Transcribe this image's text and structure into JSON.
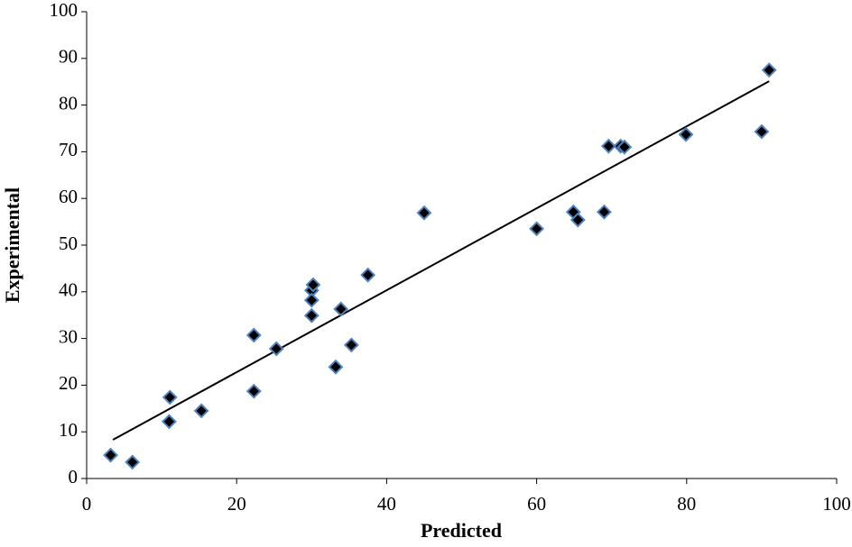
{
  "chart_data": {
    "type": "scatter",
    "x_label": "Predicted",
    "y_label": "Experimental",
    "x": [
      3.2,
      6.1,
      11.1,
      11.0,
      15.3,
      22.3,
      22.3,
      25.3,
      30.0,
      30.0,
      30.2,
      30.0,
      33.9,
      33.2,
      35.3,
      37.5,
      45.0,
      60.0,
      64.9,
      65.5,
      69.0,
      69.6,
      71.2,
      71.7,
      79.9,
      90.0,
      91.0
    ],
    "y": [
      5.0,
      3.5,
      17.4,
      12.2,
      14.5,
      30.7,
      18.7,
      27.8,
      40.3,
      38.2,
      41.5,
      34.9,
      36.3,
      23.9,
      28.6,
      43.6,
      56.9,
      53.5,
      57.1,
      55.4,
      57.1,
      71.2,
      71.2,
      71.0,
      73.7,
      74.3,
      87.5
    ],
    "color": "#000000",
    "edge_color": "#4f81bd",
    "trendline": {
      "x": [
        3.5,
        91
      ],
      "y": [
        8.3,
        85.1
      ],
      "color": "#000000"
    },
    "xlim": [
      0,
      100
    ],
    "xticks": [
      0,
      20,
      40,
      60,
      80,
      100
    ],
    "ylim": [
      0,
      100
    ],
    "yticks": [
      0,
      10,
      20,
      30,
      40,
      50,
      60,
      70,
      80,
      90,
      100
    ],
    "grid": false
  }
}
